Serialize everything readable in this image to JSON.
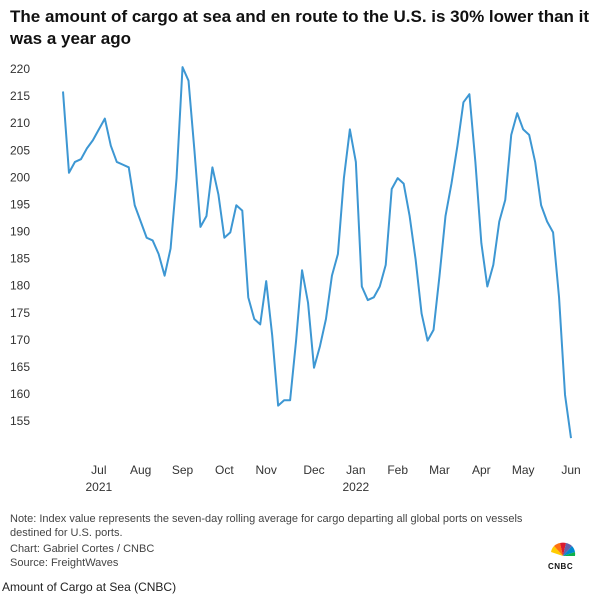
{
  "chart_data": {
    "type": "line",
    "title": "The amount of cargo at sea and en route to the U.S. is 30% lower than it was a year ago",
    "categories": [
      null,
      null,
      null,
      null,
      null,
      null,
      "Jul",
      null,
      null,
      null,
      null,
      null,
      null,
      "Aug",
      null,
      null,
      null,
      null,
      null,
      null,
      "Sep",
      null,
      null,
      null,
      null,
      null,
      null,
      "Oct",
      null,
      null,
      null,
      null,
      null,
      null,
      "Nov",
      null,
      null,
      null,
      null,
      null,
      null,
      null,
      "Dec",
      null,
      null,
      null,
      null,
      null,
      null,
      "Jan",
      null,
      null,
      null,
      null,
      null,
      null,
      "Feb",
      null,
      null,
      null,
      null,
      null,
      null,
      "Mar",
      null,
      null,
      null,
      null,
      null,
      null,
      "Apr",
      null,
      null,
      null,
      null,
      null,
      null,
      "May",
      null,
      null,
      null,
      null,
      null,
      null,
      null,
      "Jun"
    ],
    "year_labels": [
      null,
      null,
      null,
      null,
      null,
      null,
      "2021",
      null,
      null,
      null,
      null,
      null,
      null,
      null,
      null,
      null,
      null,
      null,
      null,
      null,
      null,
      null,
      null,
      null,
      null,
      null,
      null,
      null,
      null,
      null,
      null,
      null,
      null,
      null,
      null,
      null,
      null,
      null,
      null,
      null,
      null,
      null,
      null,
      null,
      null,
      null,
      null,
      null,
      null,
      "2022",
      null,
      null,
      null,
      null,
      null,
      null,
      null,
      null,
      null,
      null,
      null,
      null,
      null,
      null,
      null,
      null,
      null,
      null,
      null,
      null,
      null,
      null,
      null,
      null,
      null,
      null,
      null,
      null,
      null,
      null,
      null,
      null,
      null,
      null,
      null,
      null
    ],
    "values": [
      216,
      201,
      203,
      203.5,
      205.5,
      207,
      209,
      211,
      206,
      203,
      202.5,
      202,
      195,
      192,
      189,
      188.5,
      186,
      182,
      187,
      200,
      220.5,
      218,
      205,
      191,
      193,
      202,
      197,
      189,
      190,
      195,
      194,
      178,
      174,
      173,
      181,
      171,
      158,
      159,
      159,
      170,
      183,
      177,
      165,
      169,
      174,
      182,
      186,
      200,
      209,
      203,
      180,
      177.5,
      178,
      180,
      184,
      198,
      200,
      199,
      193,
      185,
      175,
      170,
      172,
      182,
      193,
      199,
      206,
      214,
      215.5,
      203,
      188,
      180,
      184,
      192,
      196,
      208,
      212,
      209,
      208,
      203,
      195,
      192,
      190,
      178,
      160,
      152
    ],
    "color": "#3d97d3",
    "ylim": [
      150,
      222
    ],
    "yticks": [
      155,
      160,
      165,
      170,
      175,
      180,
      185,
      190,
      195,
      200,
      205,
      210,
      215,
      220
    ],
    "grid": false,
    "note": "Note: Index value represents the seven-day rolling average for cargo departing all global ports on vessels destined for U.S. ports.",
    "credit": "Chart: Gabriel Cortes / CNBC",
    "source": "Source: FreightWaves"
  },
  "logo": "CNBC",
  "caption": "Amount of Cargo at Sea (CNBC)"
}
